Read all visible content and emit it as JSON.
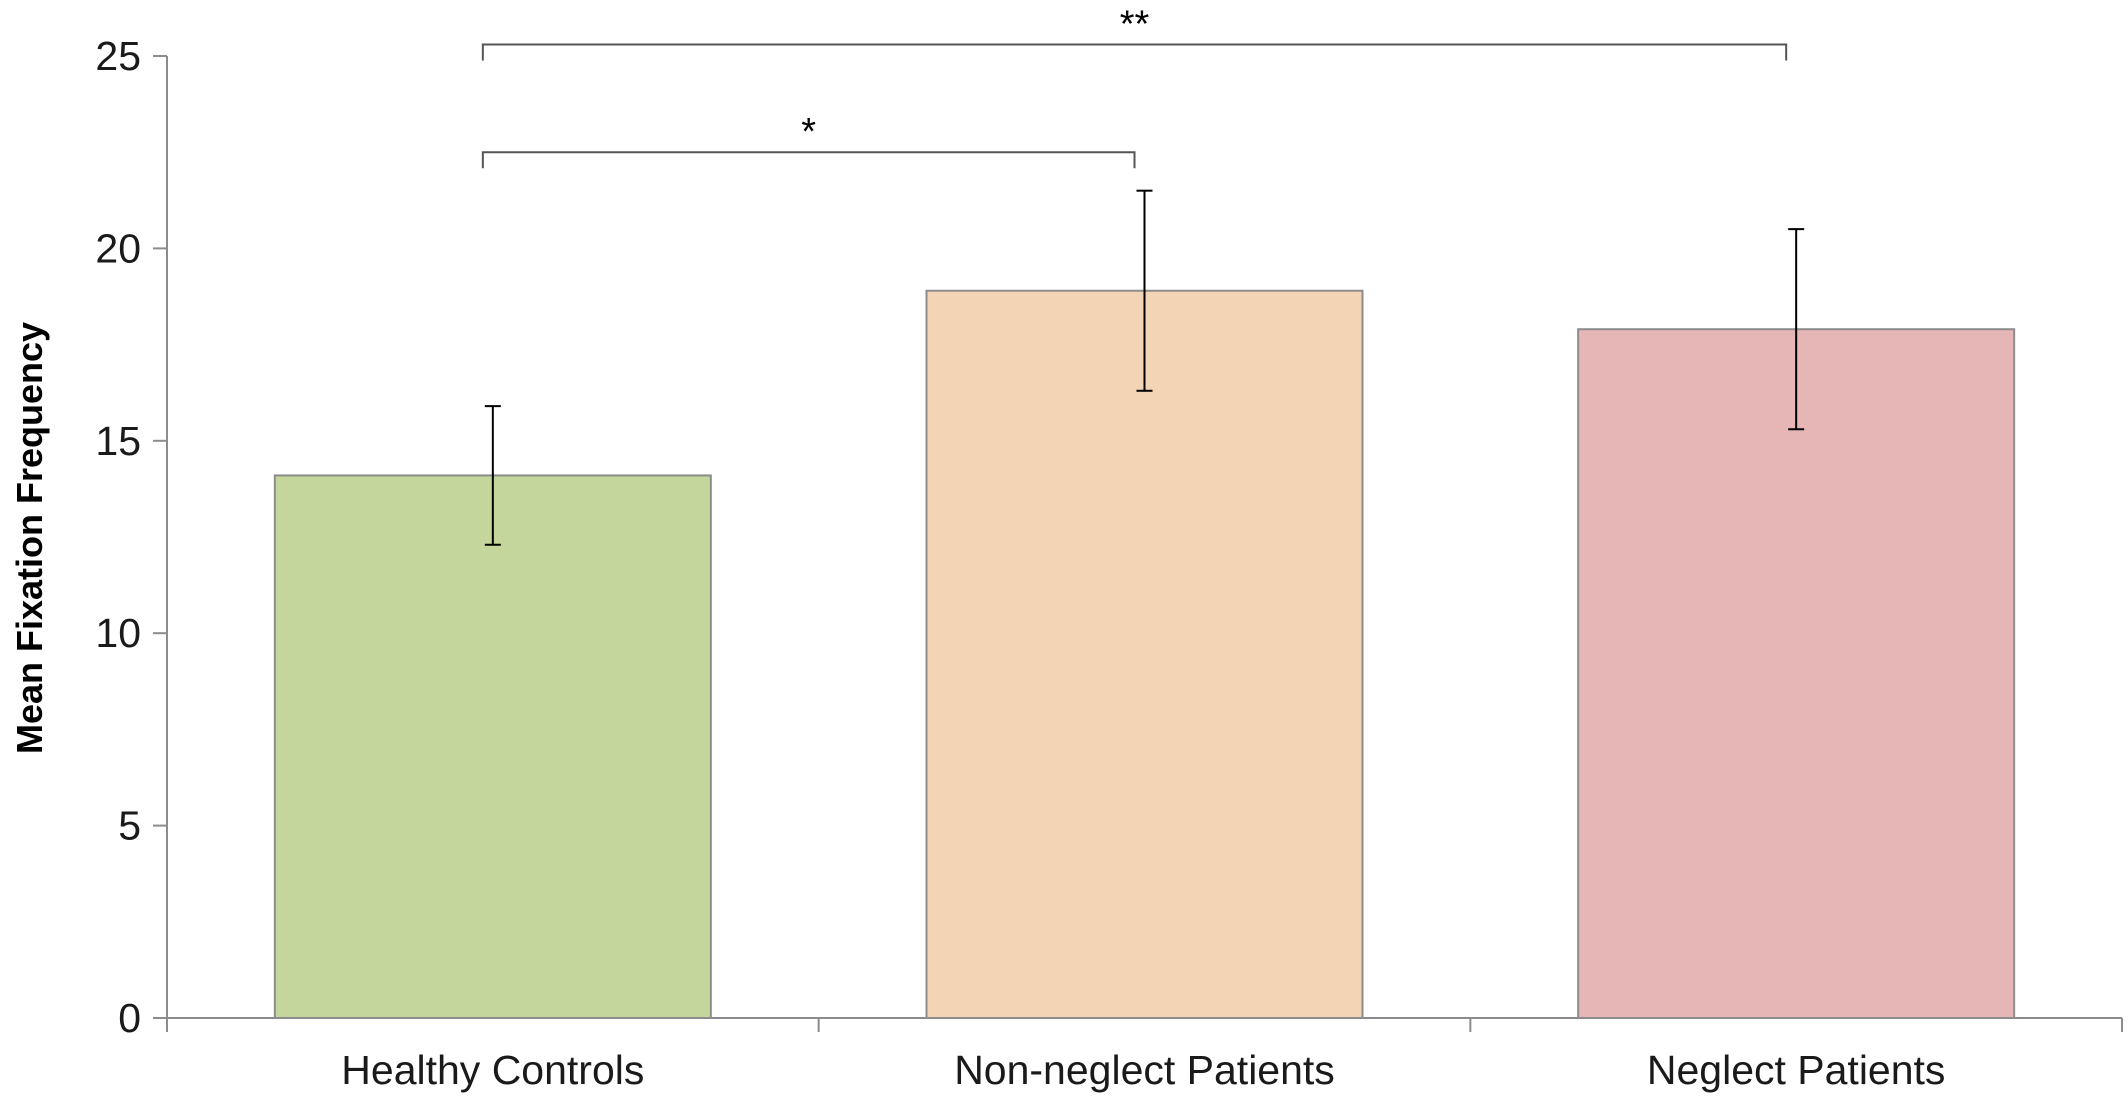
{
  "chart_data": {
    "type": "bar",
    "title": "",
    "xlabel": "",
    "ylabel": "Mean Fixation Frequency",
    "ylim": [
      0,
      25
    ],
    "yticks": [
      0,
      5,
      10,
      15,
      20,
      25
    ],
    "grid": false,
    "legend": "none",
    "categories": [
      "Healthy Controls",
      "Non-neglect Patients",
      "Neglect Patients"
    ],
    "values": [
      14.1,
      18.9,
      17.9
    ],
    "error": [
      1.8,
      2.6,
      2.6
    ],
    "colors": [
      "#c4d69c",
      "#f3d4b4",
      "#e6b6b6"
    ],
    "bar_outline": "#8c8c8c",
    "significance": [
      {
        "from": 0,
        "to": 1,
        "label": "*",
        "level": 22.5
      },
      {
        "from": 0,
        "to": 2,
        "label": "**",
        "level": 25.3
      }
    ]
  }
}
